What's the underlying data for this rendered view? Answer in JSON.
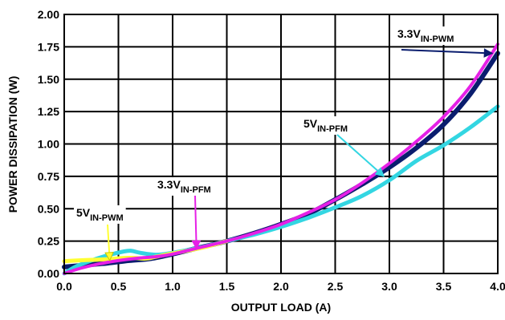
{
  "chart_data": {
    "type": "line",
    "xlabel": "OUTPUT LOAD (A)",
    "ylabel": "POWER DISSIPATION (W)",
    "xlim": [
      0,
      4
    ],
    "ylim": [
      0,
      2
    ],
    "grid": true,
    "x_ticks": [
      "0.0",
      "0.5",
      "1.0",
      "1.5",
      "2.0",
      "2.5",
      "3.0",
      "3.5",
      "4.0"
    ],
    "y_ticks": [
      "0.00",
      "0.25",
      "0.50",
      "0.75",
      "1.00",
      "1.25",
      "1.50",
      "1.75",
      "2.00"
    ],
    "series": [
      {
        "name_main": "3.3V",
        "name_sub": "IN-PWM",
        "color": "#0a1d6e",
        "x": [
          0,
          0.2,
          0.4,
          0.6,
          0.8,
          1.0,
          1.2,
          1.5,
          1.75,
          2.0,
          2.25,
          2.5,
          2.75,
          3.0,
          3.25,
          3.5,
          3.75,
          4.0
        ],
        "y": [
          0.05,
          0.065,
          0.08,
          0.1,
          0.115,
          0.15,
          0.19,
          0.25,
          0.31,
          0.38,
          0.46,
          0.57,
          0.69,
          0.82,
          0.97,
          1.15,
          1.39,
          1.7
        ]
      },
      {
        "name_main": "5V",
        "name_sub": "IN-PFM",
        "color": "#33d6e2",
        "x": [
          0,
          0.1,
          0.25,
          0.4,
          0.55,
          0.62,
          0.7,
          0.85,
          1.0,
          1.25,
          1.5,
          1.75,
          2.0,
          2.25,
          2.5,
          2.75,
          3.0,
          3.25,
          3.5,
          3.75,
          4.0
        ],
        "y": [
          0.0,
          0.05,
          0.1,
          0.14,
          0.17,
          0.175,
          0.16,
          0.145,
          0.16,
          0.2,
          0.25,
          0.3,
          0.36,
          0.43,
          0.51,
          0.6,
          0.72,
          0.87,
          0.99,
          1.13,
          1.29
        ]
      },
      {
        "name_main": "5V",
        "name_sub": "IN-PWM",
        "color": "#ffff33",
        "x": [
          0,
          0.1,
          0.25,
          0.4,
          0.55,
          0.65,
          0.75,
          0.85,
          1.0,
          1.25,
          1.5
        ],
        "y": [
          0.095,
          0.1,
          0.105,
          0.11,
          0.12,
          0.12,
          0.115,
          0.13,
          0.155,
          0.195,
          0.25
        ]
      },
      {
        "name_main": "3.3V",
        "name_sub": "IN-PFM",
        "color": "#e620e6",
        "x": [
          0,
          0.15,
          0.3,
          0.5,
          0.7,
          0.85,
          1.0,
          1.25,
          1.5,
          1.75,
          2.0,
          2.25,
          2.5,
          2.75,
          3.0,
          3.25,
          3.5,
          3.75,
          4.0
        ],
        "y": [
          0.0,
          0.04,
          0.07,
          0.1,
          0.12,
          0.13,
          0.15,
          0.2,
          0.25,
          0.31,
          0.38,
          0.47,
          0.57,
          0.7,
          0.85,
          1.02,
          1.21,
          1.45,
          1.77
        ]
      }
    ],
    "annotations": [
      {
        "main": "3.3V",
        "sub": "IN-PWM",
        "target_x": 3.95,
        "target_y": 1.7
      },
      {
        "main": "5V",
        "sub": "IN-PFM",
        "target_x": 2.95,
        "target_y": 0.75
      },
      {
        "main": "3.3V",
        "sub": "IN-PFM",
        "target_x": 1.22,
        "target_y": 0.19
      },
      {
        "main": "5V",
        "sub": "IN-PWM",
        "target_x": 0.42,
        "target_y": 0.1
      }
    ]
  }
}
